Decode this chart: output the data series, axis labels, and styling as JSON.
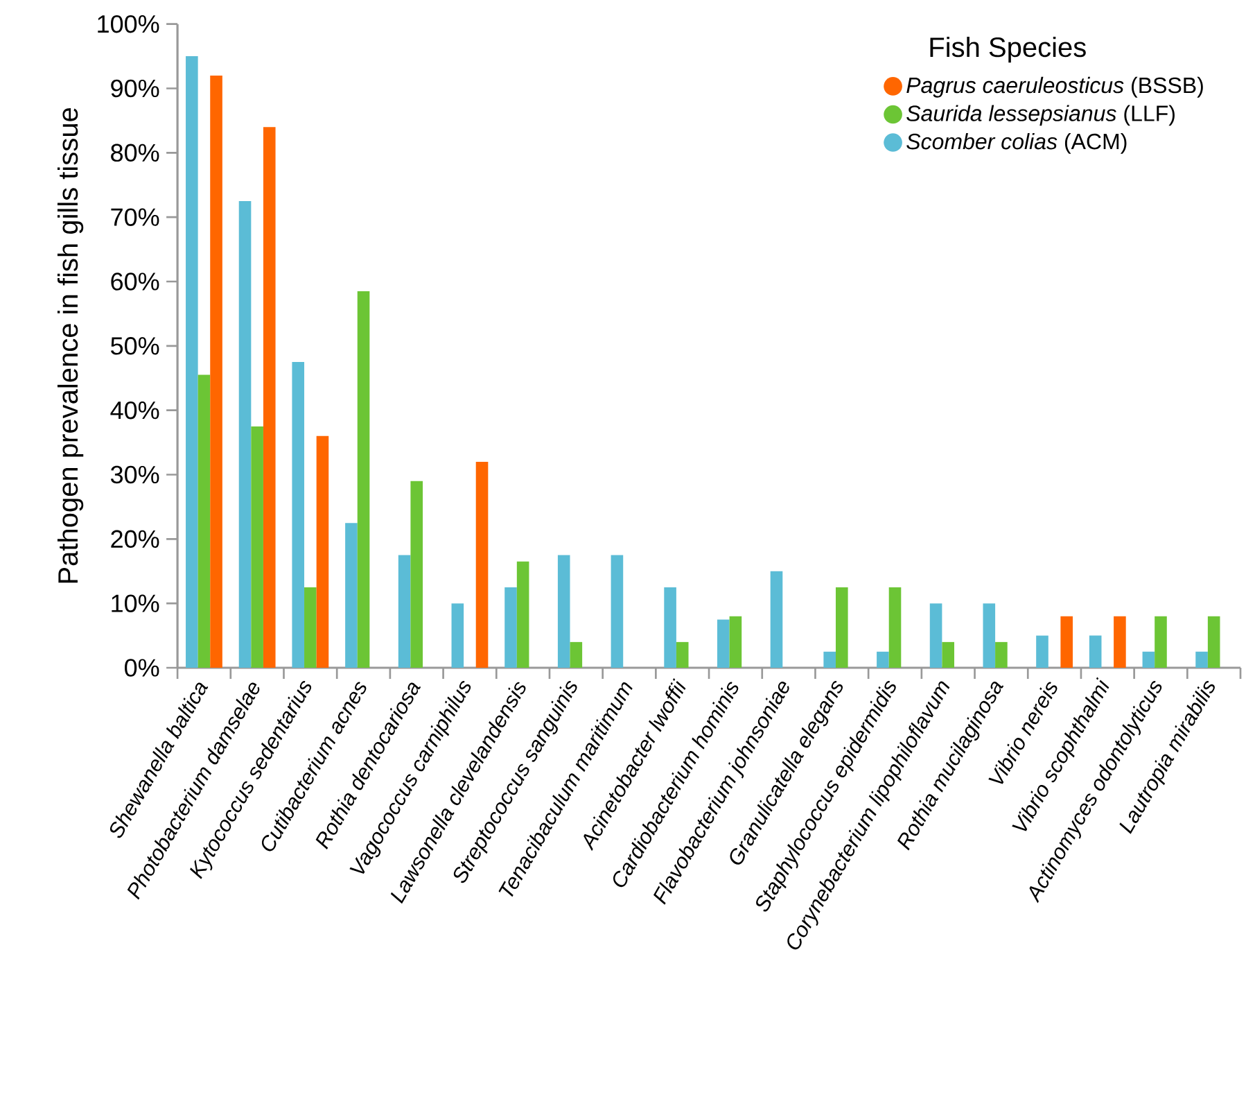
{
  "chart_data": {
    "type": "bar",
    "ylabel": "Pathogen prevalence in fish gills tissue",
    "legend_title": "Fish Species",
    "categories": [
      "Shewanella baltica",
      "Photobacterium damselae",
      "Kytococcus sedentarius",
      "Cutibacterium acnes",
      "Rothia dentocariosa",
      "Vagococcus carniphilus",
      "Lawsonella clevelandensis",
      "Streptococcus sanguinis",
      "Tenacibaculum maritimum",
      "Acinetobacter lwoffii",
      "Cardiobacterium hominis",
      "Flavobacterium johnsoniae",
      "Granulicatella elegans",
      "Staphylococcus epidermidis",
      "Corynebacterium lipophiloflavum",
      "Rothia mucilaginosa",
      "Vibrio nereis",
      "Vibrio scophthalmi",
      "Actinomyces odontolyticus",
      "Lautropia mirabilis"
    ],
    "series": [
      {
        "name": "*Scomber colias* (ACM)",
        "color": "#5bbcd6",
        "values": [
          95,
          72.5,
          47.5,
          22.5,
          17.5,
          10,
          12.5,
          17.5,
          17.5,
          12.5,
          7.5,
          15,
          2.5,
          2.5,
          10,
          10,
          5,
          5,
          2.5,
          2.5
        ]
      },
      {
        "name": "*Saurida lessepsianus* (LLF)",
        "color": "#6cc535",
        "values": [
          45.5,
          37.5,
          12.5,
          58.5,
          29,
          null,
          16.5,
          4,
          null,
          4,
          8,
          null,
          12.5,
          12.5,
          4,
          4,
          null,
          null,
          8,
          8
        ]
      },
      {
        "name": "*Pagrus caeruleosticus* (BSSB)",
        "color": "#ff6600",
        "values": [
          92,
          84,
          36,
          null,
          null,
          32,
          null,
          null,
          null,
          null,
          null,
          null,
          null,
          null,
          null,
          null,
          8,
          8,
          null,
          null
        ]
      }
    ],
    "ylim": [
      0,
      100
    ],
    "yticks": [
      {
        "value": 0,
        "label": "0%"
      },
      {
        "value": 10,
        "label": "10%"
      },
      {
        "value": 20,
        "label": "20%"
      },
      {
        "value": 30,
        "label": "30%"
      },
      {
        "value": 40,
        "label": "40%"
      },
      {
        "value": 50,
        "label": "50%"
      },
      {
        "value": 60,
        "label": "60%"
      },
      {
        "value": 70,
        "label": "70%"
      },
      {
        "value": 80,
        "label": "80%"
      },
      {
        "value": 90,
        "label": "90%"
      },
      {
        "value": 100,
        "label": "100%"
      }
    ],
    "grid": false,
    "legend": "top right"
  }
}
